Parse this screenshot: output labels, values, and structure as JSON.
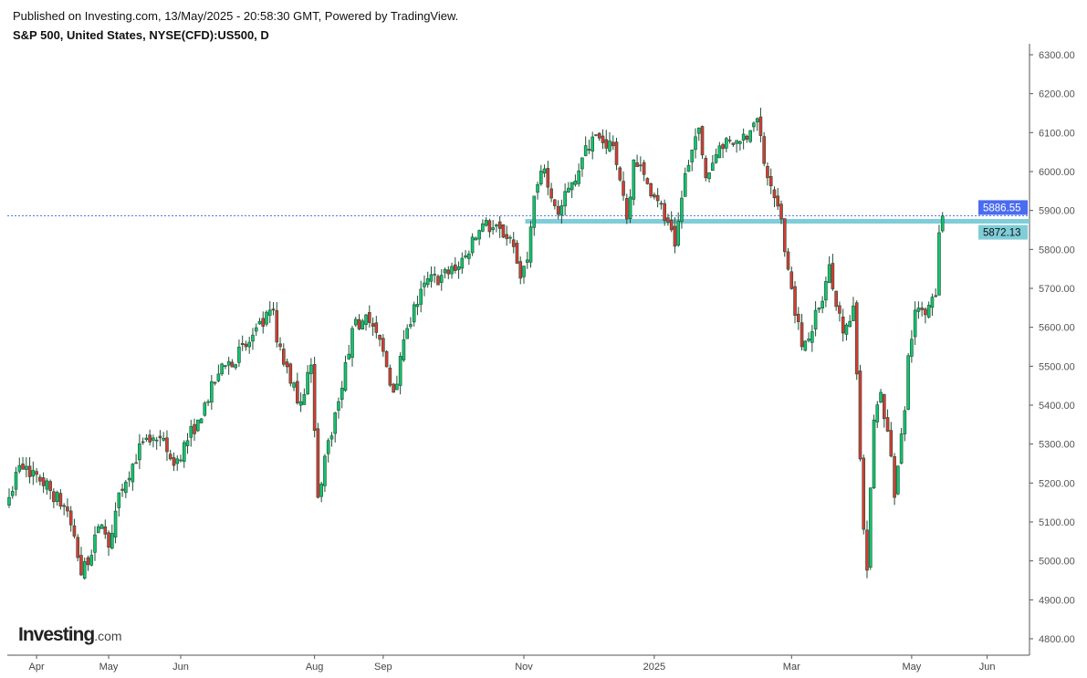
{
  "header": {
    "published": "Published on Investing.com, 13/May/2025 - 20:58:30 GMT, Powered by TradingView.",
    "title": "S&P 500, United States, NYSE(CFD):US500, D"
  },
  "logo": {
    "main": "Investing",
    "suffix": ".com"
  },
  "colors": {
    "up": "#12c46e",
    "down": "#d93a34",
    "outline": "#1e4e34",
    "level": "#7fcdd8",
    "last_price": "#4a6cf0"
  },
  "chart_data": {
    "type": "candlestick",
    "title": "S&P 500, United States, NYSE(CFD):US500, D",
    "ylim": [
      4800,
      6300
    ],
    "y_ticks": [
      6300,
      6200,
      6100,
      6000,
      5900,
      5800,
      5700,
      5600,
      5500,
      5400,
      5300,
      5200,
      5100,
      5000,
      4900,
      4800
    ],
    "x_labels": [
      {
        "label": "Apr",
        "day": 8
      },
      {
        "label": "May",
        "day": 29
      },
      {
        "label": "Jun",
        "day": 50
      },
      {
        "label": "Aug",
        "day": 89
      },
      {
        "label": "Sep",
        "day": 109
      },
      {
        "label": "Nov",
        "day": 150
      },
      {
        "label": "2025",
        "day": 188
      },
      {
        "label": "Mar",
        "day": 228
      },
      {
        "label": "May",
        "day": 263
      },
      {
        "label": "Jun",
        "day": 285
      }
    ],
    "close_keypoints": [
      [
        0,
        5163
      ],
      [
        3,
        5245
      ],
      [
        8,
        5222
      ],
      [
        17,
        5128
      ],
      [
        21,
        4964
      ],
      [
        27,
        5093
      ],
      [
        29,
        5035
      ],
      [
        32,
        5175
      ],
      [
        39,
        5304
      ],
      [
        44,
        5316
      ],
      [
        48,
        5245
      ],
      [
        55,
        5362
      ],
      [
        61,
        5480
      ],
      [
        69,
        5550
      ],
      [
        77,
        5644
      ],
      [
        78,
        5562
      ],
      [
        82,
        5456
      ],
      [
        85,
        5409
      ],
      [
        88,
        5503
      ],
      [
        90,
        5163
      ],
      [
        92,
        5269
      ],
      [
        97,
        5444
      ],
      [
        100,
        5597
      ],
      [
        104,
        5632
      ],
      [
        109,
        5538
      ],
      [
        112,
        5433
      ],
      [
        116,
        5597
      ],
      [
        121,
        5714
      ],
      [
        128,
        5737
      ],
      [
        133,
        5784
      ],
      [
        138,
        5866
      ],
      [
        146,
        5831
      ],
      [
        149,
        5726
      ],
      [
        151,
        5773
      ],
      [
        153,
        5937
      ],
      [
        156,
        6007
      ],
      [
        160,
        5890
      ],
      [
        164,
        5972
      ],
      [
        170,
        6089
      ],
      [
        176,
        6066
      ],
      [
        180,
        5878
      ],
      [
        182,
        6030
      ],
      [
        189,
        5925
      ],
      [
        194,
        5808
      ],
      [
        197,
        5995
      ],
      [
        201,
        6112
      ],
      [
        203,
        5984
      ],
      [
        207,
        6066
      ],
      [
        213,
        6077
      ],
      [
        218,
        6136
      ],
      [
        221,
        5984
      ],
      [
        225,
        5878
      ],
      [
        227,
        5749
      ],
      [
        231,
        5550
      ],
      [
        237,
        5667
      ],
      [
        239,
        5761
      ],
      [
        243,
        5585
      ],
      [
        246,
        5655
      ],
      [
        247,
        5480
      ],
      [
        249,
        5081
      ],
      [
        250,
        4976
      ],
      [
        252,
        5362
      ],
      [
        254,
        5433
      ],
      [
        257,
        5269
      ],
      [
        258,
        5163
      ],
      [
        261,
        5386
      ],
      [
        262,
        5527
      ],
      [
        264,
        5644
      ],
      [
        267,
        5632
      ],
      [
        270,
        5679
      ],
      [
        271,
        5843
      ],
      [
        272,
        5886
      ]
    ],
    "last_price": "5886.55",
    "level_price": "5872.13",
    "last_price_value": 5886.55,
    "level_value": 5872.13,
    "level_start_day": 152
  }
}
